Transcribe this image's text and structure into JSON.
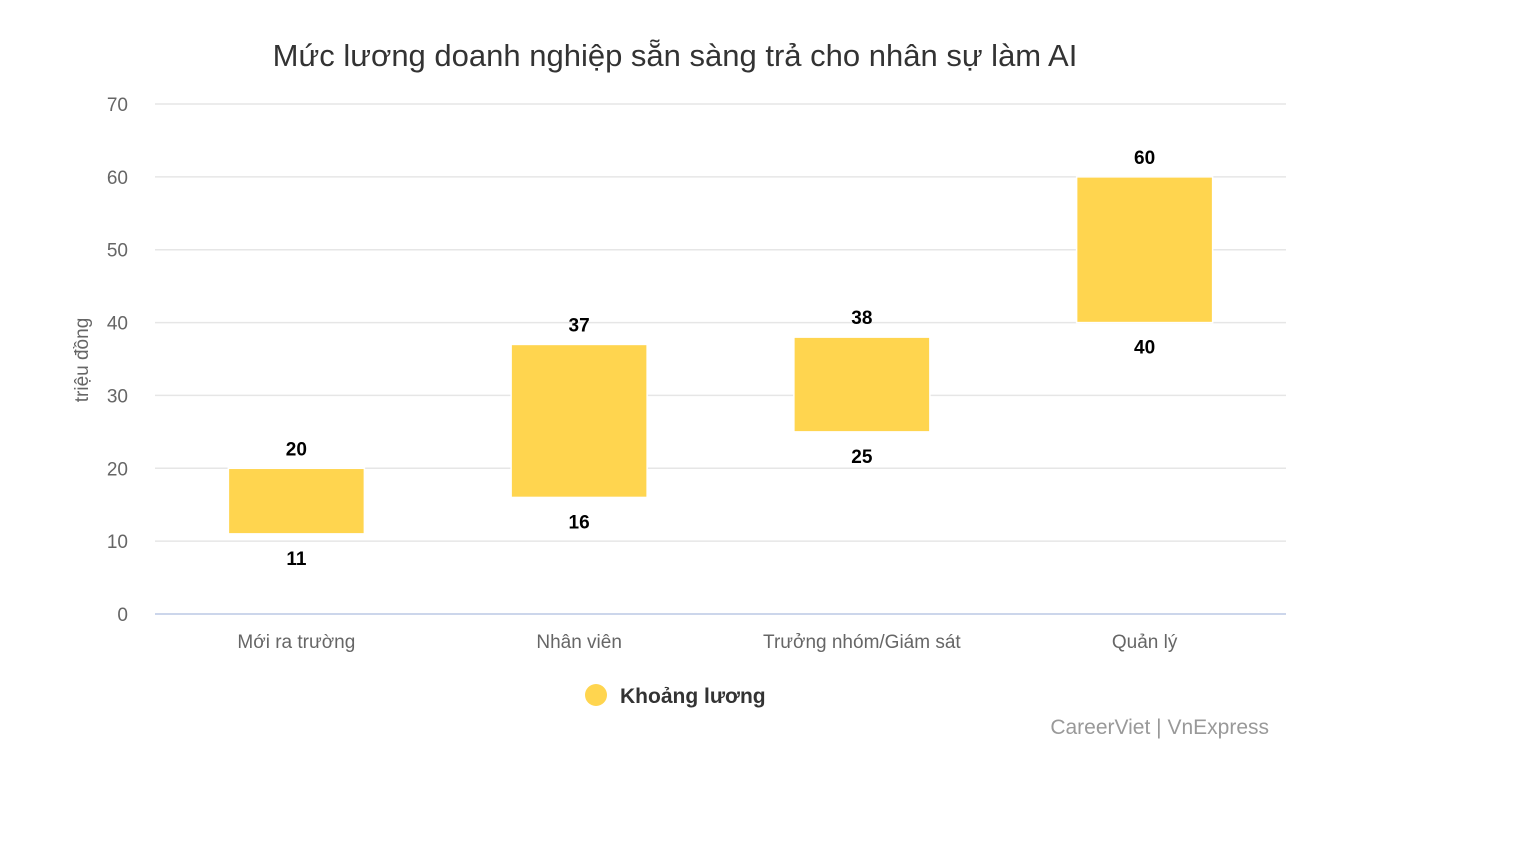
{
  "chart_data": {
    "type": "columnrange",
    "title": "Mức lương doanh nghiệp sẵn sàng trả cho nhân sự làm AI",
    "ylabel": "triệu đồng",
    "xlabel": "",
    "ylim": [
      0,
      70
    ],
    "yticks": [
      0,
      10,
      20,
      30,
      40,
      50,
      60,
      70
    ],
    "grid": true,
    "legend_position": "bottom",
    "categories": [
      "Mới ra trường",
      "Nhân viên",
      "Trưởng nhóm/Giám sát",
      "Quản lý"
    ],
    "series": [
      {
        "name": "Khoảng lương",
        "color": "#FFD54F",
        "low": [
          11,
          16,
          25,
          40
        ],
        "high": [
          20,
          37,
          38,
          60
        ]
      }
    ],
    "credit": "CareerViet | VnExpress"
  }
}
